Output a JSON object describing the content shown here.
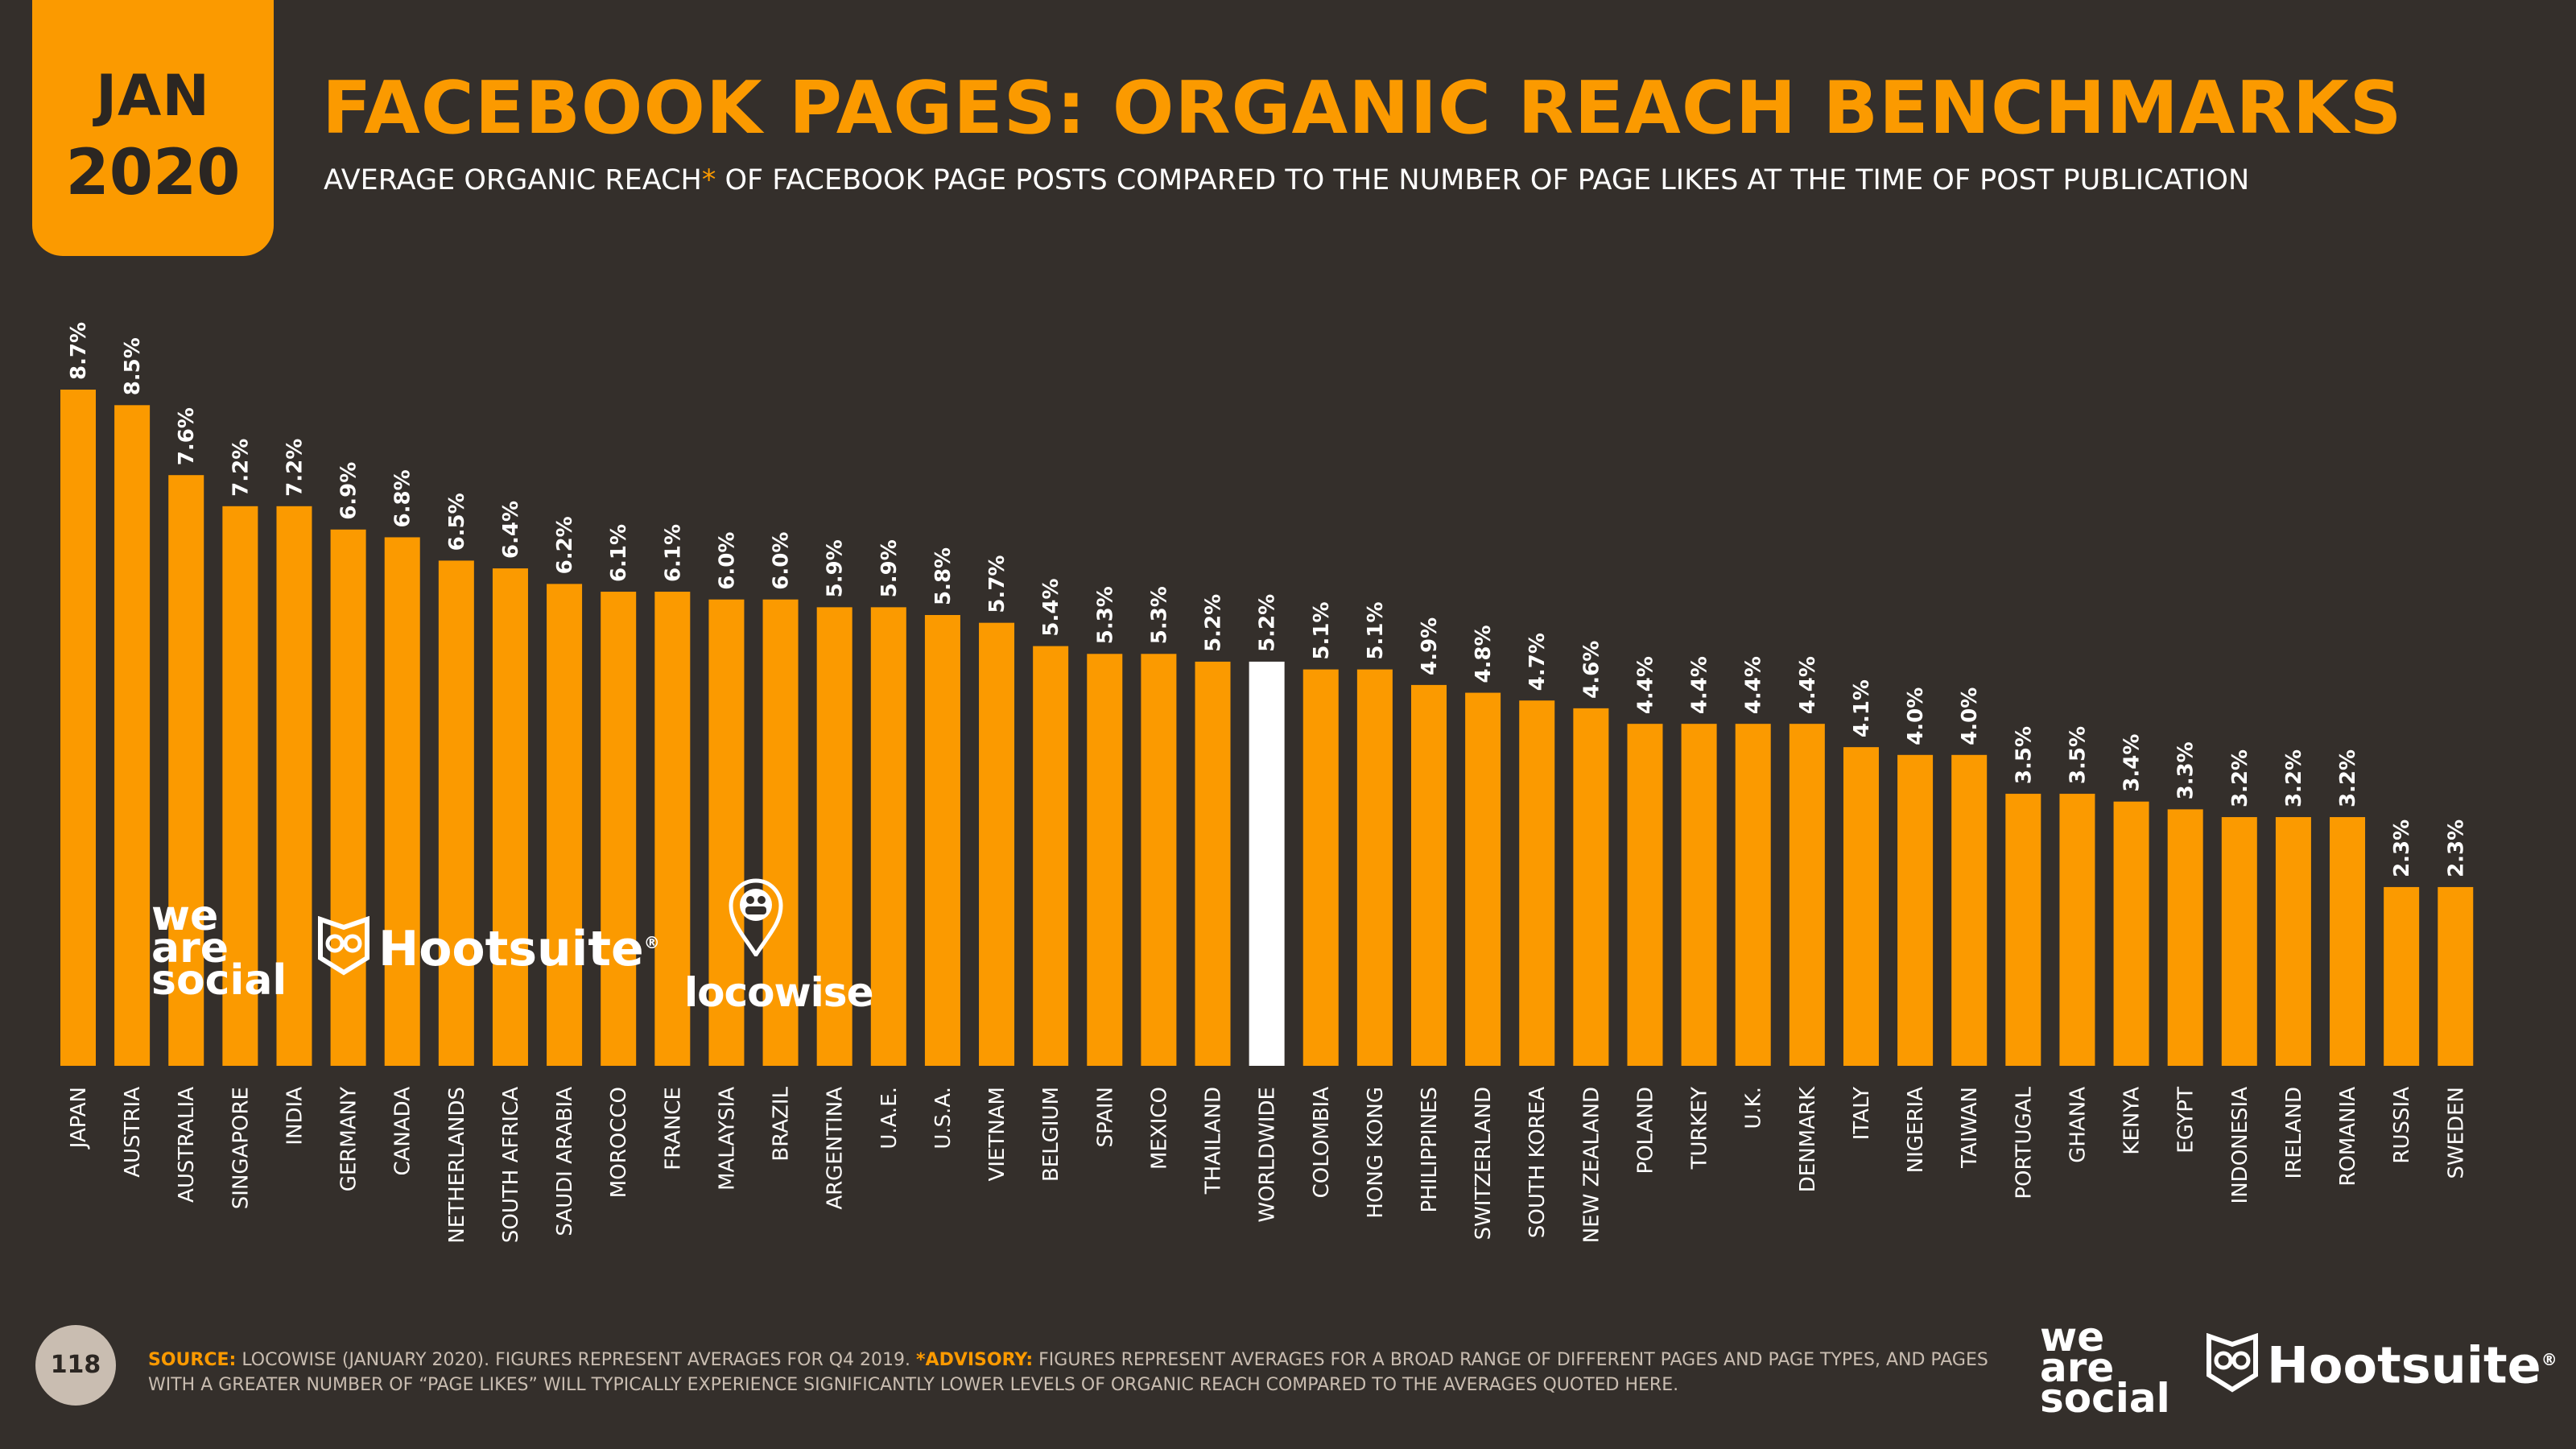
{
  "badge": {
    "month": "JAN",
    "year": "2020"
  },
  "header": {
    "title": "FACEBOOK PAGES: ORGANIC REACH BENCHMARKS",
    "subtitle_a": "AVERAGE ORGANIC REACH",
    "subtitle_star": "*",
    "subtitle_b": " OF FACEBOOK PAGE POSTS COMPARED TO THE NUMBER OF PAGE LIKES AT THE TIME OF POST PUBLICATION"
  },
  "colors": {
    "background": "#342f2b",
    "accent": "#fb9a00",
    "highlight": "#ffffff",
    "muted": "#c9bdb1"
  },
  "chart_data": {
    "type": "bar",
    "categories": [
      "JAPAN",
      "AUSTRIA",
      "AUSTRALIA",
      "SINGAPORE",
      "INDIA",
      "GERMANY",
      "CANADA",
      "NETHERLANDS",
      "SOUTH AFRICA",
      "SAUDI ARABIA",
      "MOROCCO",
      "FRANCE",
      "MALAYSIA",
      "BRAZIL",
      "ARGENTINA",
      "U.A.E.",
      "U.S.A.",
      "VIETNAM",
      "BELGIUM",
      "SPAIN",
      "MEXICO",
      "THAILAND",
      "WORLDWIDE",
      "COLOMBIA",
      "HONG KONG",
      "PHILIPPINES",
      "SWITZERLAND",
      "SOUTH KOREA",
      "NEW ZEALAND",
      "POLAND",
      "TURKEY",
      "U.K.",
      "DENMARK",
      "ITALY",
      "NIGERIA",
      "TAIWAN",
      "PORTUGAL",
      "GHANA",
      "KENYA",
      "EGYPT",
      "INDONESIA",
      "IRELAND",
      "ROMANIA",
      "RUSSIA",
      "SWEDEN"
    ],
    "values": [
      8.7,
      8.5,
      7.6,
      7.2,
      7.2,
      6.9,
      6.8,
      6.5,
      6.4,
      6.2,
      6.1,
      6.1,
      6.0,
      6.0,
      5.9,
      5.9,
      5.8,
      5.7,
      5.4,
      5.3,
      5.3,
      5.2,
      5.2,
      5.1,
      5.1,
      4.9,
      4.8,
      4.7,
      4.6,
      4.4,
      4.4,
      4.4,
      4.4,
      4.1,
      4.0,
      4.0,
      3.5,
      3.5,
      3.4,
      3.3,
      3.2,
      3.2,
      3.2,
      2.3,
      2.3
    ],
    "labels": [
      "8.7%",
      "8.5%",
      "7.6%",
      "7.2%",
      "7.2%",
      "6.9%",
      "6.8%",
      "6.5%",
      "6.4%",
      "6.2%",
      "6.1%",
      "6.1%",
      "6.0%",
      "6.0%",
      "5.9%",
      "5.9%",
      "5.8%",
      "5.7%",
      "5.4%",
      "5.3%",
      "5.3%",
      "5.2%",
      "5.2%",
      "5.1%",
      "5.1%",
      "4.9%",
      "4.8%",
      "4.7%",
      "4.6%",
      "4.4%",
      "4.4%",
      "4.4%",
      "4.4%",
      "4.1%",
      "4.0%",
      "4.0%",
      "3.5%",
      "3.5%",
      "3.4%",
      "3.3%",
      "3.2%",
      "3.2%",
      "3.2%",
      "2.3%",
      "2.3%"
    ],
    "highlight_category": "WORLDWIDE",
    "title": "",
    "xlabel": "",
    "ylabel": "",
    "ylim": [
      0,
      8.7
    ],
    "grid": false
  },
  "logos": {
    "wearesocial_lines": [
      "we",
      "are",
      "social"
    ],
    "hootsuite": "Hootsuite",
    "registered": "®",
    "locowise": "locowise"
  },
  "footer": {
    "page_number": "118",
    "source_label": "SOURCE:",
    "source_text": " LOCOWISE (JANUARY 2020). FIGURES REPRESENT AVERAGES FOR Q4 2019. ",
    "advisory_label": "*ADVISORY:",
    "advisory_text": " FIGURES REPRESENT AVERAGES FOR A BROAD RANGE OF DIFFERENT PAGES AND PAGE TYPES, AND PAGES WITH A GREATER NUMBER OF “PAGE LIKES” WILL TYPICALLY EXPERIENCE SIGNIFICANTLY LOWER LEVELS OF ORGANIC REACH COMPARED TO THE AVERAGES QUOTED HERE."
  }
}
